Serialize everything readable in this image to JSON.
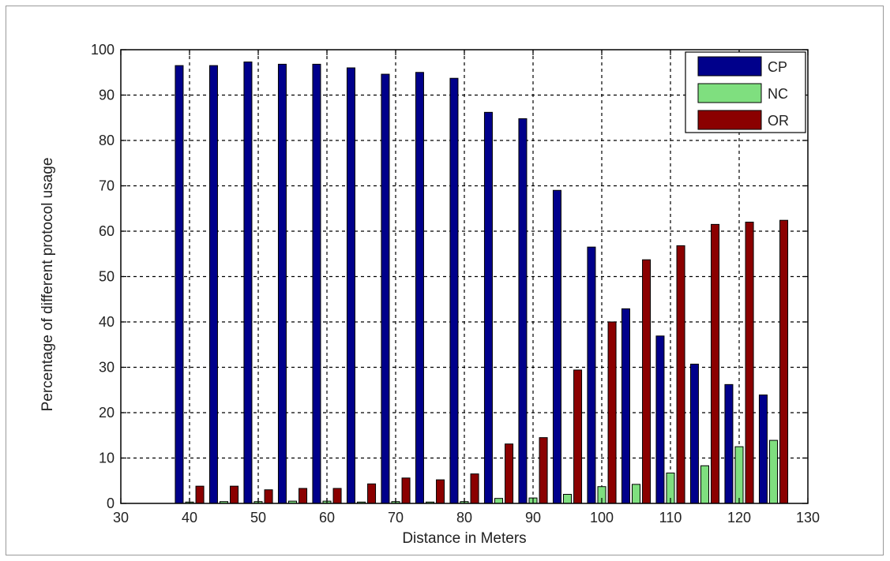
{
  "chart_data": {
    "type": "bar",
    "title": "",
    "xlabel": "Distance in Meters",
    "ylabel": "Percentage of different protocol usage",
    "xlim": [
      30,
      130
    ],
    "ylim": [
      0,
      100
    ],
    "x_ticks": [
      30,
      40,
      50,
      60,
      70,
      80,
      90,
      100,
      110,
      120,
      130
    ],
    "y_ticks": [
      0,
      10,
      20,
      30,
      40,
      50,
      60,
      70,
      80,
      90,
      100
    ],
    "grid": true,
    "legend_position": "top-right",
    "x": [
      40,
      45,
      50,
      55,
      60,
      65,
      70,
      75,
      80,
      85,
      90,
      95,
      100,
      105,
      110,
      115,
      120,
      125
    ],
    "series": [
      {
        "name": "CP",
        "color": "#00008b",
        "values": [
          96.5,
          96.5,
          97.3,
          96.8,
          96.8,
          96,
          94.6,
          95,
          93.7,
          86.2,
          84.8,
          69,
          56.5,
          42.9,
          36.9,
          30.7,
          26.2,
          23.9
        ]
      },
      {
        "name": "NC",
        "color": "#7fdf7f",
        "values": [
          0.3,
          0.4,
          0.4,
          0.5,
          0.5,
          0.3,
          0.4,
          0.3,
          0.4,
          1.1,
          1.2,
          2,
          3.7,
          4.2,
          6.7,
          8.3,
          12.5,
          13.9
        ]
      },
      {
        "name": "OR",
        "color": "#8b0000",
        "values": [
          3.8,
          3.8,
          3,
          3.3,
          3.3,
          4.3,
          5.6,
          5.2,
          6.5,
          13.1,
          14.5,
          29.4,
          40,
          53.7,
          56.8,
          61.5,
          62,
          62.4
        ]
      }
    ]
  }
}
